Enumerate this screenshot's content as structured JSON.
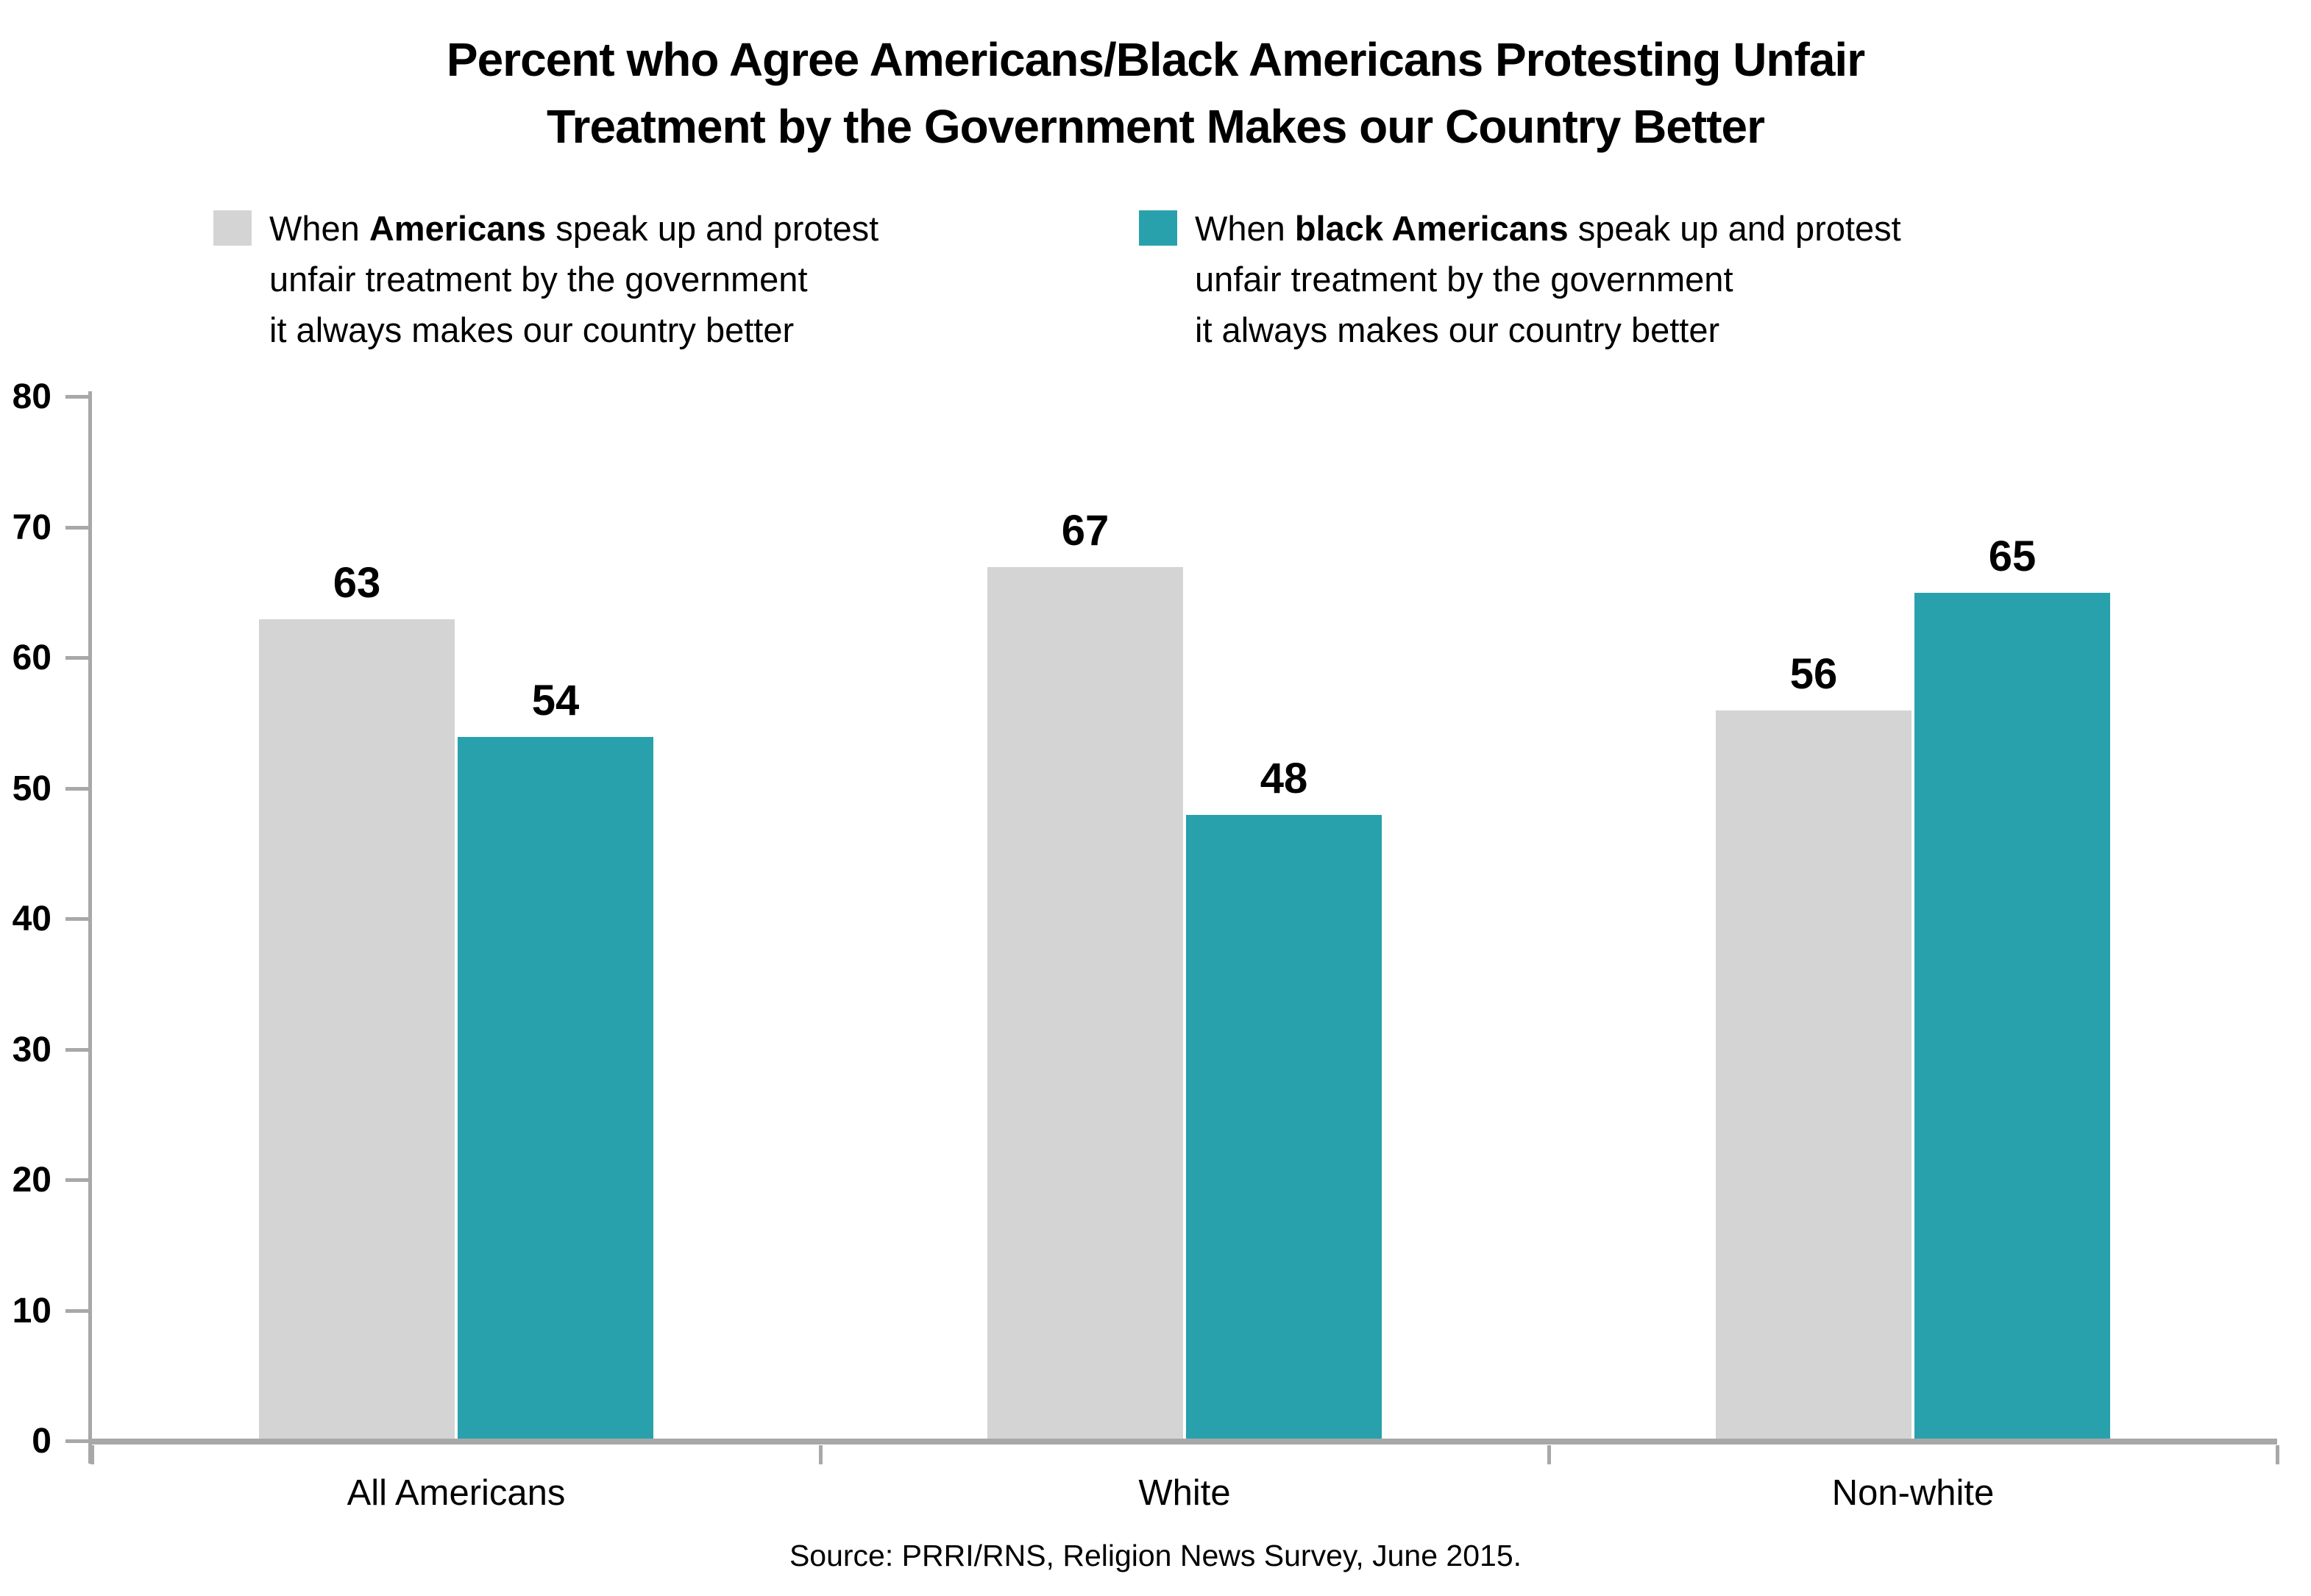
{
  "title_lines": [
    "Percent who Agree Americans/Black Americans Protesting Unfair",
    "Treatment by the Government Makes our Country Better"
  ],
  "legend": {
    "items": [
      {
        "swatch_color": "#d4d4d4",
        "line1_prefix": "When ",
        "line1_bold": "Americans",
        "line1_suffix": " speak up and protest",
        "line2": "unfair treatment by the government",
        "line3": "it always makes our country better"
      },
      {
        "swatch_color": "#29a1ac",
        "line1_prefix": "When ",
        "line1_bold": "black Americans",
        "line1_suffix": " speak up and protest",
        "line2": "unfair treatment by the government",
        "line3": "it always makes our country better"
      }
    ]
  },
  "chart_data": {
    "type": "bar",
    "categories": [
      "All Americans",
      "White",
      "Non-white"
    ],
    "series": [
      {
        "name": "When Americans speak up and protest unfair treatment by the government it always makes our country better",
        "color": "#d4d4d4",
        "values": [
          63,
          67,
          56
        ]
      },
      {
        "name": "When black Americans speak up and protest unfair treatment by the government it always makes our country better",
        "color": "#29a1ac",
        "values": [
          54,
          48,
          65
        ]
      }
    ],
    "ylim": [
      0,
      80
    ],
    "yticks": [
      0,
      10,
      20,
      30,
      40,
      50,
      60,
      70,
      80
    ],
    "grid": false,
    "legend_position": "top",
    "value_labels": true,
    "axis_color": "#a8a8a8"
  },
  "source": "Source: PRRI/RNS, Religion News Survey, June 2015."
}
